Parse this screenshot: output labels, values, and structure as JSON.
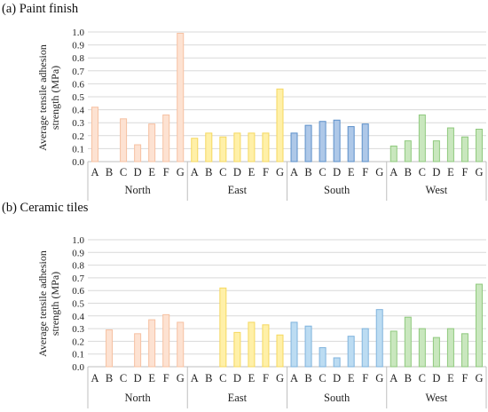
{
  "chart_data": [
    {
      "type": "bar",
      "title": "(a) Paint finish",
      "ylabel": [
        "Average tensile adhesion",
        "strength (MPa)"
      ],
      "ylim": [
        0,
        1.0
      ],
      "yticks": [
        "0.0",
        "0.1",
        "0.2",
        "0.3",
        "0.4",
        "0.5",
        "0.6",
        "0.7",
        "0.8",
        "0.9",
        "1.0"
      ],
      "grid": true,
      "categories": [
        "A",
        "B",
        "C",
        "D",
        "E",
        "F",
        "G"
      ],
      "groups": [
        {
          "name": "North",
          "fill": "#fde2d2",
          "stroke": "#f6c1a2",
          "values": [
            0.42,
            0,
            0.33,
            0.13,
            0.29,
            0.36,
            0.99
          ]
        },
        {
          "name": "East",
          "fill": "#fff0a8",
          "stroke": "#f5d85f",
          "values": [
            0.18,
            0.22,
            0.19,
            0.22,
            0.22,
            0.22,
            0.56
          ]
        },
        {
          "name": "South",
          "fill": "#aec8e8",
          "stroke": "#5b8fc9",
          "values": [
            0.22,
            0.28,
            0.31,
            0.32,
            0.27,
            0.29,
            0
          ]
        },
        {
          "name": "West",
          "fill": "#c9e7be",
          "stroke": "#8fc97d",
          "values": [
            0.12,
            0.16,
            0.36,
            0.16,
            0.26,
            0.19,
            0.25
          ]
        }
      ]
    },
    {
      "type": "bar",
      "title": "(b) Ceramic tiles",
      "ylabel": [
        "Average tensile adhesion",
        "strength (MPa)"
      ],
      "ylim": [
        0,
        1.0
      ],
      "yticks": [
        "0.0",
        "0.1",
        "0.2",
        "0.3",
        "0.4",
        "0.5",
        "0.6",
        "0.7",
        "0.8",
        "0.9",
        "1.0"
      ],
      "grid": true,
      "categories": [
        "A",
        "B",
        "C",
        "D",
        "E",
        "F",
        "G"
      ],
      "groups": [
        {
          "name": "North",
          "fill": "#fde2d2",
          "stroke": "#f6c1a2",
          "values": [
            0,
            0.29,
            0,
            0.26,
            0.37,
            0.41,
            0.35
          ]
        },
        {
          "name": "East",
          "fill": "#fff0a8",
          "stroke": "#f5d85f",
          "values": [
            0,
            0,
            0.62,
            0.27,
            0.35,
            0.33,
            0.25
          ]
        },
        {
          "name": "South",
          "fill": "#bcdcf2",
          "stroke": "#7fb3dd",
          "values": [
            0.35,
            0.32,
            0.15,
            0.07,
            0.24,
            0.3,
            0.45
          ]
        },
        {
          "name": "West",
          "fill": "#c9e7be",
          "stroke": "#8fc97d",
          "values": [
            0.28,
            0.39,
            0.3,
            0.23,
            0.3,
            0.26,
            0.65
          ]
        }
      ]
    }
  ]
}
